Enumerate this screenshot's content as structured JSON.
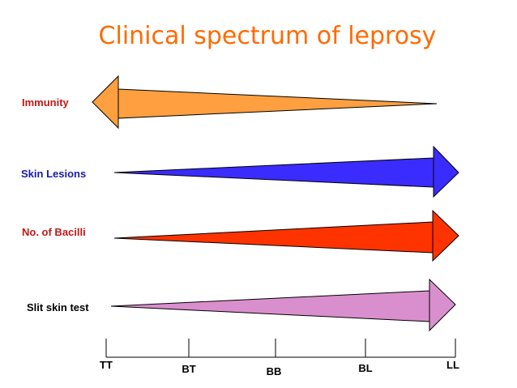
{
  "title": "Clinical spectrum of leprosy",
  "colors": {
    "title": "#ff6a00",
    "immunity_fill": "#ff9f40",
    "immunity_label": "#c01818",
    "skin_lesions_fill": "#3a2cff",
    "skin_lesions_label": "#1a1aa8",
    "bacilli_fill": "#ff3300",
    "bacilli_label": "#c01818",
    "slit_skin_fill": "#d98fce",
    "slit_skin_label": "#000000",
    "outline": "#000000"
  },
  "rows": [
    {
      "key": "immunity",
      "label": "Immunity",
      "direction": "left"
    },
    {
      "key": "skin_lesions",
      "label": "Skin Lesions",
      "direction": "right"
    },
    {
      "key": "bacilli",
      "label": "No. of Bacilli",
      "direction": "right"
    },
    {
      "key": "slit_skin",
      "label": "Slit skin test",
      "direction": "right"
    }
  ],
  "scale": {
    "ticks": [
      "TT",
      "BT",
      "BB",
      "BL",
      "LL"
    ]
  }
}
